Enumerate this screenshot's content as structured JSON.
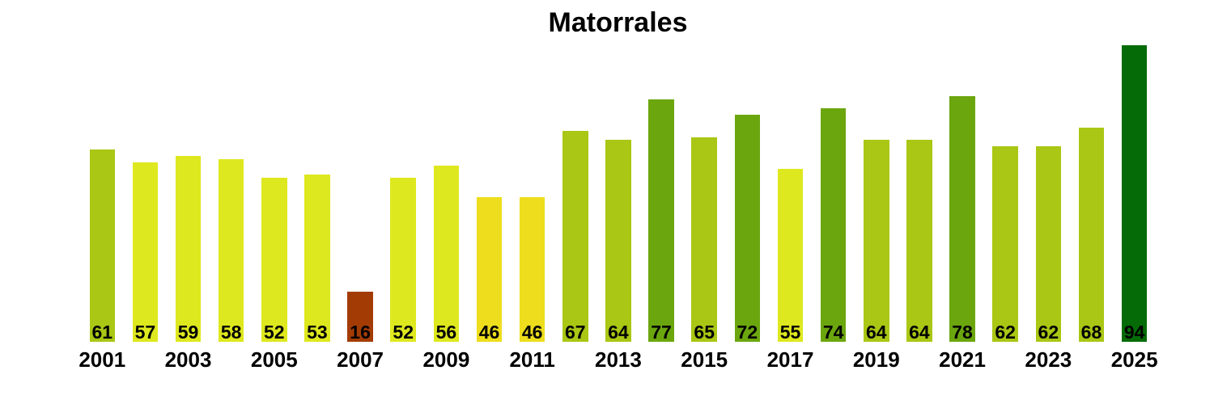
{
  "chart_data": {
    "type": "bar",
    "title": "Matorrales",
    "x": [
      2001,
      2002,
      2003,
      2004,
      2005,
      2006,
      2007,
      2008,
      2009,
      2010,
      2011,
      2012,
      2013,
      2014,
      2015,
      2016,
      2017,
      2018,
      2019,
      2020,
      2021,
      2022,
      2023,
      2024,
      2025
    ],
    "values": [
      61,
      57,
      59,
      58,
      52,
      53,
      16,
      52,
      56,
      46,
      46,
      67,
      64,
      77,
      65,
      72,
      55,
      74,
      64,
      64,
      78,
      62,
      62,
      68,
      94
    ],
    "bar_colors": [
      "#A9C714",
      "#DEE81E",
      "#DEE81E",
      "#DEE81E",
      "#DEE81E",
      "#DEE81E",
      "#A33B04",
      "#DEE81E",
      "#DEE81E",
      "#EDDD1C",
      "#EDDD1C",
      "#A9C714",
      "#A9C714",
      "#6CA60F",
      "#A9C714",
      "#6CA60F",
      "#DEE81E",
      "#6CA60F",
      "#A9C714",
      "#A9C714",
      "#6CA60F",
      "#A9C714",
      "#A9C714",
      "#A9C714",
      "#046B06"
    ],
    "x_tick_labels": [
      "2001",
      "2003",
      "2005",
      "2007",
      "2009",
      "2011",
      "2013",
      "2015",
      "2017",
      "2019",
      "2021",
      "2023",
      "2025"
    ],
    "value_label_position": "inside-bottom",
    "xlabel": "",
    "ylabel": "",
    "ylim": [
      0,
      94
    ],
    "grid": false,
    "legend": false,
    "axes_visible": false,
    "background_color": "#FFFFFF",
    "text_color": "#000000",
    "palette": {
      "very_low": "#A33B04",
      "low": "#EDDD1C",
      "medium": "#DEE81E",
      "good": "#A9C714",
      "high": "#6CA60F",
      "very_high": "#046B06"
    }
  }
}
